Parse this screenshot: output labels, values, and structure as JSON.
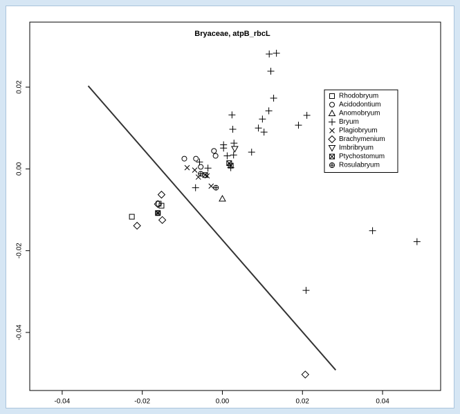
{
  "chart_data": {
    "type": "scatter",
    "title": "Bryaceae, atpB_rbcL",
    "xlim": [
      -0.0481,
      0.0545
    ],
    "ylim": [
      -0.0542,
      0.0359
    ],
    "xticks": [
      -0.04,
      -0.02,
      {
        "value": 0,
        "label": "0.00"
      },
      0.02,
      0.04
    ],
    "yticks": [
      -0.04,
      -0.02,
      {
        "value": 0,
        "label": "0.00"
      },
      0.02
    ],
    "grid": false,
    "legend": "right",
    "line": {
      "color": "#333333",
      "x": [
        -0.0335,
        0.0283
      ],
      "y": [
        0.0203,
        -0.0492
      ]
    },
    "series": [
      {
        "name": "Rhodobryum",
        "marker": "square",
        "color": "#000000",
        "x": [
          -0.0226,
          -0.0159,
          -0.0152
        ],
        "y": [
          -0.0117,
          -0.0085,
          -0.009
        ]
      },
      {
        "name": "Acidodontium",
        "marker": "circle",
        "color": "#000000",
        "x": [
          -0.0095,
          -0.0066,
          -0.0021,
          -0.0017,
          -0.0054
        ],
        "y": [
          0.0025,
          0.0025,
          0.0044,
          0.0032,
          0.0005
        ]
      },
      {
        "name": "Anomobryum",
        "marker": "triangle",
        "color": "#000000",
        "x": [
          0.0
        ],
        "y": [
          -0.0073
        ]
      },
      {
        "name": "Bryum",
        "marker": "plus",
        "color": "#000000",
        "x": [
          0.0117,
          0.0135,
          0.0121,
          0.0128,
          0.0116,
          0.0211,
          0.019,
          0.0024,
          0.01,
          0.009,
          0.0104,
          0.0026,
          0.0003,
          0.0029,
          0.0003,
          0.0073,
          0.0012,
          0.0028,
          0.0021,
          -0.0036,
          -0.0057,
          -0.0067,
          0.0375,
          0.0486,
          0.0209
        ],
        "y": [
          0.0281,
          0.0283,
          0.0239,
          0.0173,
          0.0142,
          0.0131,
          0.0107,
          0.0132,
          0.0122,
          0.01,
          0.009,
          0.0097,
          0.0059,
          0.0063,
          0.0051,
          0.0041,
          0.0032,
          0.0034,
          0.0003,
          0.0002,
          0.0017,
          -0.0046,
          -0.0151,
          -0.0178,
          -0.0297
        ]
      },
      {
        "name": "Plagiobryum",
        "marker": "cross",
        "color": "#000000",
        "x": [
          -0.0088,
          -0.0069,
          -0.006,
          -0.0028,
          -0.0038
        ],
        "y": [
          0.0003,
          -0.0003,
          -0.002,
          -0.0042,
          -0.0017
        ]
      },
      {
        "name": "Brachymenium",
        "marker": "diamond",
        "color": "#000000",
        "x": [
          -0.0152,
          -0.0161,
          -0.015,
          -0.0213,
          0.0207
        ],
        "y": [
          -0.0063,
          -0.0086,
          -0.0125,
          -0.0139,
          -0.0503
        ]
      },
      {
        "name": "Imbribryum",
        "marker": "triangle-down",
        "color": "#000000",
        "x": [
          0.0031
        ],
        "y": [
          0.0049
        ]
      },
      {
        "name": "Ptychostomum",
        "marker": "square-x",
        "color": "#000000",
        "x": [
          -0.0161,
          -0.0043,
          0.0017,
          0.0021
        ],
        "y": [
          -0.0108,
          -0.0015,
          0.0014,
          0.0008
        ]
      },
      {
        "name": "Rosulabryum",
        "marker": "circle-plus",
        "color": "#000000",
        "x": [
          -0.0161,
          -0.0054,
          -0.0016
        ],
        "y": [
          -0.0108,
          -0.0012,
          -0.0046
        ]
      }
    ]
  }
}
